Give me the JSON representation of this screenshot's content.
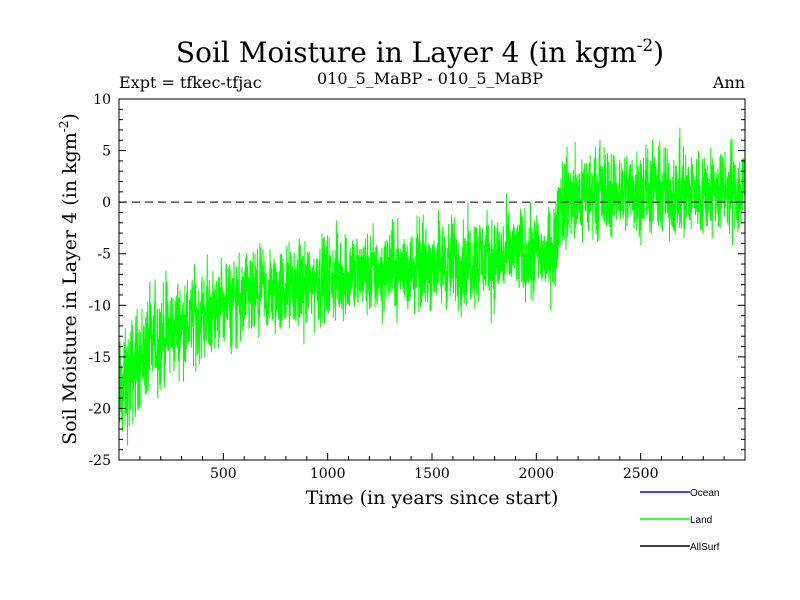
{
  "chart_data": {
    "type": "line",
    "title": "Soil Moisture in Layer 4 (in kgm",
    "title_sup": "-2",
    "title_close": ")",
    "subtitle_left": "Expt = tfkec-tfjac",
    "subtitle_center": "010_5_MaBP - 010_5_MaBP",
    "subtitle_right": "Ann",
    "xlabel": "Time (in years since start)",
    "ylabel": "Soil Moisture in Layer 4 (in kgm",
    "ylabel_sup": "-2",
    "ylabel_close": ")",
    "xlim": [
      0,
      3000
    ],
    "ylim": [
      -25,
      10
    ],
    "x_ticks": [
      500,
      1000,
      1500,
      2000,
      2500
    ],
    "y_ticks": [
      10,
      5,
      0,
      -5,
      -10,
      -15,
      -20,
      -25
    ],
    "reference_line": 0,
    "grid": false,
    "legend_placement": "bottom-right",
    "series": [
      {
        "name": "Ocean",
        "color": "#0000ff",
        "x": [],
        "y": []
      },
      {
        "name": "Land",
        "color": "#00ff00",
        "x": [
          0,
          100,
          200,
          300,
          400,
          500,
          600,
          700,
          800,
          900,
          1000,
          1100,
          1200,
          1300,
          1400,
          1500,
          1600,
          1700,
          1800,
          1900,
          2000,
          2090,
          2110,
          2200,
          2300,
          2400,
          2500,
          2600,
          2700,
          2800,
          2900,
          3000
        ],
        "y": [
          -19,
          -15,
          -13,
          -12,
          -11,
          -10,
          -9.5,
          -9,
          -8.5,
          -8,
          -7.5,
          -7,
          -7,
          -6.5,
          -6.5,
          -6,
          -6,
          -5.5,
          -5.5,
          -5,
          -5,
          -5,
          0,
          0.5,
          1,
          1,
          1,
          1,
          1,
          1,
          1,
          1
        ],
        "noise": [
          4,
          3.5,
          3.5,
          3,
          3,
          3,
          3,
          3,
          3,
          3,
          3,
          3,
          3,
          3,
          3,
          3,
          3,
          3,
          3,
          3,
          3,
          3,
          3,
          3,
          3,
          3,
          3,
          3,
          3,
          3,
          3,
          3
        ]
      },
      {
        "name": "AllSurf",
        "color": "#000000",
        "x": [],
        "y": []
      }
    ]
  }
}
